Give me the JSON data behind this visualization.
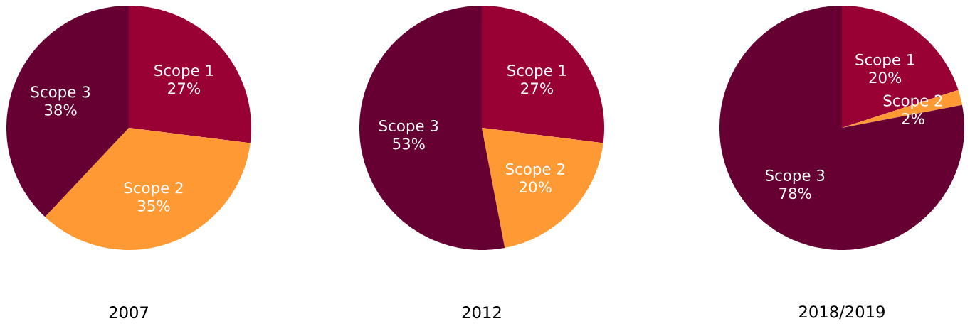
{
  "chart_data": [
    {
      "type": "pie",
      "title": "2007",
      "categories": [
        "Scope 1",
        "Scope 2",
        "Scope 3"
      ],
      "values": [
        27,
        35,
        38
      ],
      "value_labels": [
        "27%",
        "35%",
        "38%"
      ],
      "colors": [
        "#990033",
        "#ff9933",
        "#660033"
      ]
    },
    {
      "type": "pie",
      "title": "2012",
      "categories": [
        "Scope 1",
        "Scope 2",
        "Scope 3"
      ],
      "values": [
        27,
        20,
        53
      ],
      "value_labels": [
        "27%",
        "20%",
        "53%"
      ],
      "colors": [
        "#990033",
        "#ff9933",
        "#660033"
      ]
    },
    {
      "type": "pie",
      "title": "2018/2019",
      "categories": [
        "Scope 1",
        "Scope 2",
        "Scope 3"
      ],
      "values": [
        20,
        2,
        78
      ],
      "value_labels": [
        "20%",
        "2%",
        "78%"
      ],
      "colors": [
        "#990033",
        "#ff9933",
        "#660033"
      ]
    }
  ]
}
